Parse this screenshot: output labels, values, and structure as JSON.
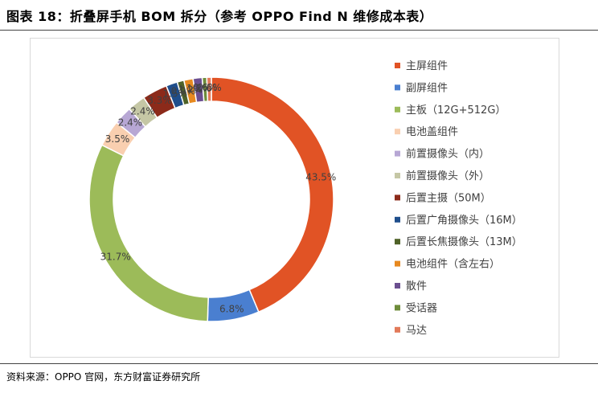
{
  "figure": {
    "title": "图表 18：折叠屏手机 BOM 拆分（参考 OPPO Find N 维修成本表）",
    "source": "资料来源：OPPO 官网，东方财富证券研究所"
  },
  "chart_data": {
    "type": "pie",
    "donut": true,
    "start_angle_deg": 0,
    "direction": "clockwise",
    "legend_placement": "right",
    "labels": [
      "主屏组件",
      "副屏组件",
      "主板（12G+512G）",
      "电池盖组件",
      "前置摄像头（内）",
      "前置摄像头（外）",
      "后置主摄（50M）",
      "后置广角摄像头（16M）",
      "后置长焦摄像头（13M）",
      "电池组件（含左右）",
      "散件",
      "受话器",
      "马达"
    ],
    "values": [
      43.5,
      6.8,
      31.7,
      3.5,
      2.4,
      2.4,
      3.3,
      1.5,
      0.9,
      1.2,
      1.2,
      0.6,
      0.6
    ],
    "data_labels": [
      "43.5%",
      "6.8%",
      "31.7%",
      "3.5%",
      "2.4%",
      "2.4%",
      "3.3%",
      "1.5%",
      "0.9%",
      "1.2%",
      "1.2%",
      "0.6%",
      "0.6%"
    ],
    "colors": [
      "#e15325",
      "#4a7fd0",
      "#9cbb59",
      "#f9cfb0",
      "#b7a7d4",
      "#c5c7a5",
      "#8c2a1a",
      "#1f4e8c",
      "#4f6228",
      "#e7891f",
      "#6b4f90",
      "#6e8c3a",
      "#e27a5a"
    ]
  }
}
